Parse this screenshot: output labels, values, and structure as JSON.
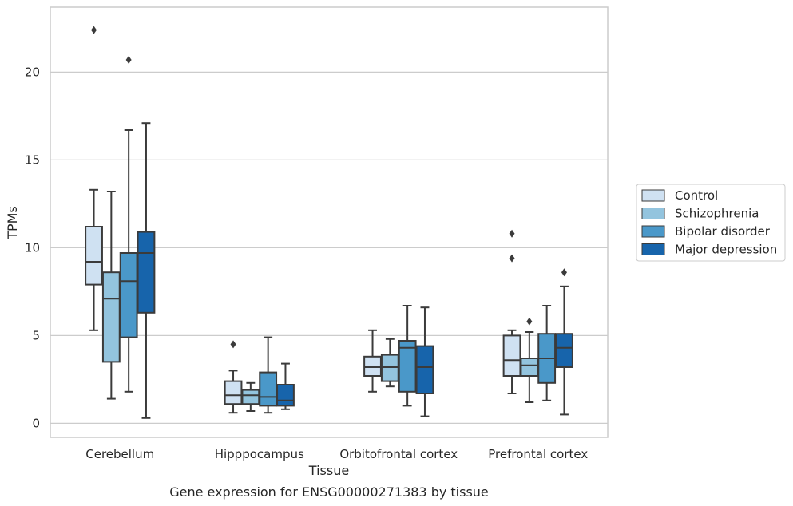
{
  "caption": "Gene expression for ENSG00000271383 by tissue",
  "colors": {
    "Control": "#cfe1f2",
    "Schizophrenia": "#93c4de",
    "Bipolar disorder": "#4a98c9",
    "Major depression": "#1764ab",
    "edge": "#3b3b3b",
    "grid": "#cccccc"
  },
  "chart_data": {
    "type": "box",
    "xlabel": "Tissue",
    "ylabel": "TPMs",
    "ylim": [
      -0.8,
      23.7
    ],
    "yticks": [
      0,
      5,
      10,
      15,
      20
    ],
    "grid": "horizontal",
    "legend_placement": "right",
    "categories": [
      "Cerebellum",
      "Hipppocampus",
      "Orbitofrontal cortex",
      "Prefrontal cortex"
    ],
    "series": [
      {
        "name": "Control",
        "boxes": [
          {
            "whisker_low": 5.3,
            "q1": 7.9,
            "median": 9.2,
            "q3": 11.2,
            "whisker_high": 13.3,
            "outliers": [
              22.4
            ]
          },
          {
            "whisker_low": 0.6,
            "q1": 1.1,
            "median": 1.6,
            "q3": 2.4,
            "whisker_high": 3.0,
            "outliers": [
              4.5
            ]
          },
          {
            "whisker_low": 1.8,
            "q1": 2.7,
            "median": 3.2,
            "q3": 3.8,
            "whisker_high": 5.3,
            "outliers": []
          },
          {
            "whisker_low": 1.7,
            "q1": 2.7,
            "median": 3.6,
            "q3": 5.0,
            "whisker_high": 5.3,
            "outliers": [
              9.4,
              10.8
            ]
          }
        ]
      },
      {
        "name": "Schizophrenia",
        "boxes": [
          {
            "whisker_low": 1.4,
            "q1": 3.5,
            "median": 7.1,
            "q3": 8.6,
            "whisker_high": 13.2,
            "outliers": []
          },
          {
            "whisker_low": 0.7,
            "q1": 1.1,
            "median": 1.6,
            "q3": 1.9,
            "whisker_high": 2.3,
            "outliers": []
          },
          {
            "whisker_low": 2.1,
            "q1": 2.4,
            "median": 3.2,
            "q3": 3.9,
            "whisker_high": 4.8,
            "outliers": []
          },
          {
            "whisker_low": 1.2,
            "q1": 2.7,
            "median": 3.3,
            "q3": 3.7,
            "whisker_high": 5.2,
            "outliers": [
              5.8
            ]
          }
        ]
      },
      {
        "name": "Bipolar disorder",
        "boxes": [
          {
            "whisker_low": 1.8,
            "q1": 4.9,
            "median": 8.1,
            "q3": 9.7,
            "whisker_high": 16.7,
            "outliers": [
              20.7
            ]
          },
          {
            "whisker_low": 0.6,
            "q1": 1.0,
            "median": 1.5,
            "q3": 2.9,
            "whisker_high": 4.9,
            "outliers": []
          },
          {
            "whisker_low": 1.0,
            "q1": 1.8,
            "median": 4.3,
            "q3": 4.7,
            "whisker_high": 6.7,
            "outliers": []
          },
          {
            "whisker_low": 1.3,
            "q1": 2.3,
            "median": 3.7,
            "q3": 5.1,
            "whisker_high": 6.7,
            "outliers": []
          }
        ]
      },
      {
        "name": "Major depression",
        "boxes": [
          {
            "whisker_low": 0.3,
            "q1": 6.3,
            "median": 9.7,
            "q3": 10.9,
            "whisker_high": 17.1,
            "outliers": []
          },
          {
            "whisker_low": 0.8,
            "q1": 1.0,
            "median": 1.3,
            "q3": 2.2,
            "whisker_high": 3.4,
            "outliers": []
          },
          {
            "whisker_low": 0.4,
            "q1": 1.7,
            "median": 3.2,
            "q3": 4.4,
            "whisker_high": 6.6,
            "outliers": []
          },
          {
            "whisker_low": 0.5,
            "q1": 3.2,
            "median": 4.3,
            "q3": 5.1,
            "whisker_high": 7.8,
            "outliers": [
              8.6
            ]
          }
        ]
      }
    ]
  }
}
